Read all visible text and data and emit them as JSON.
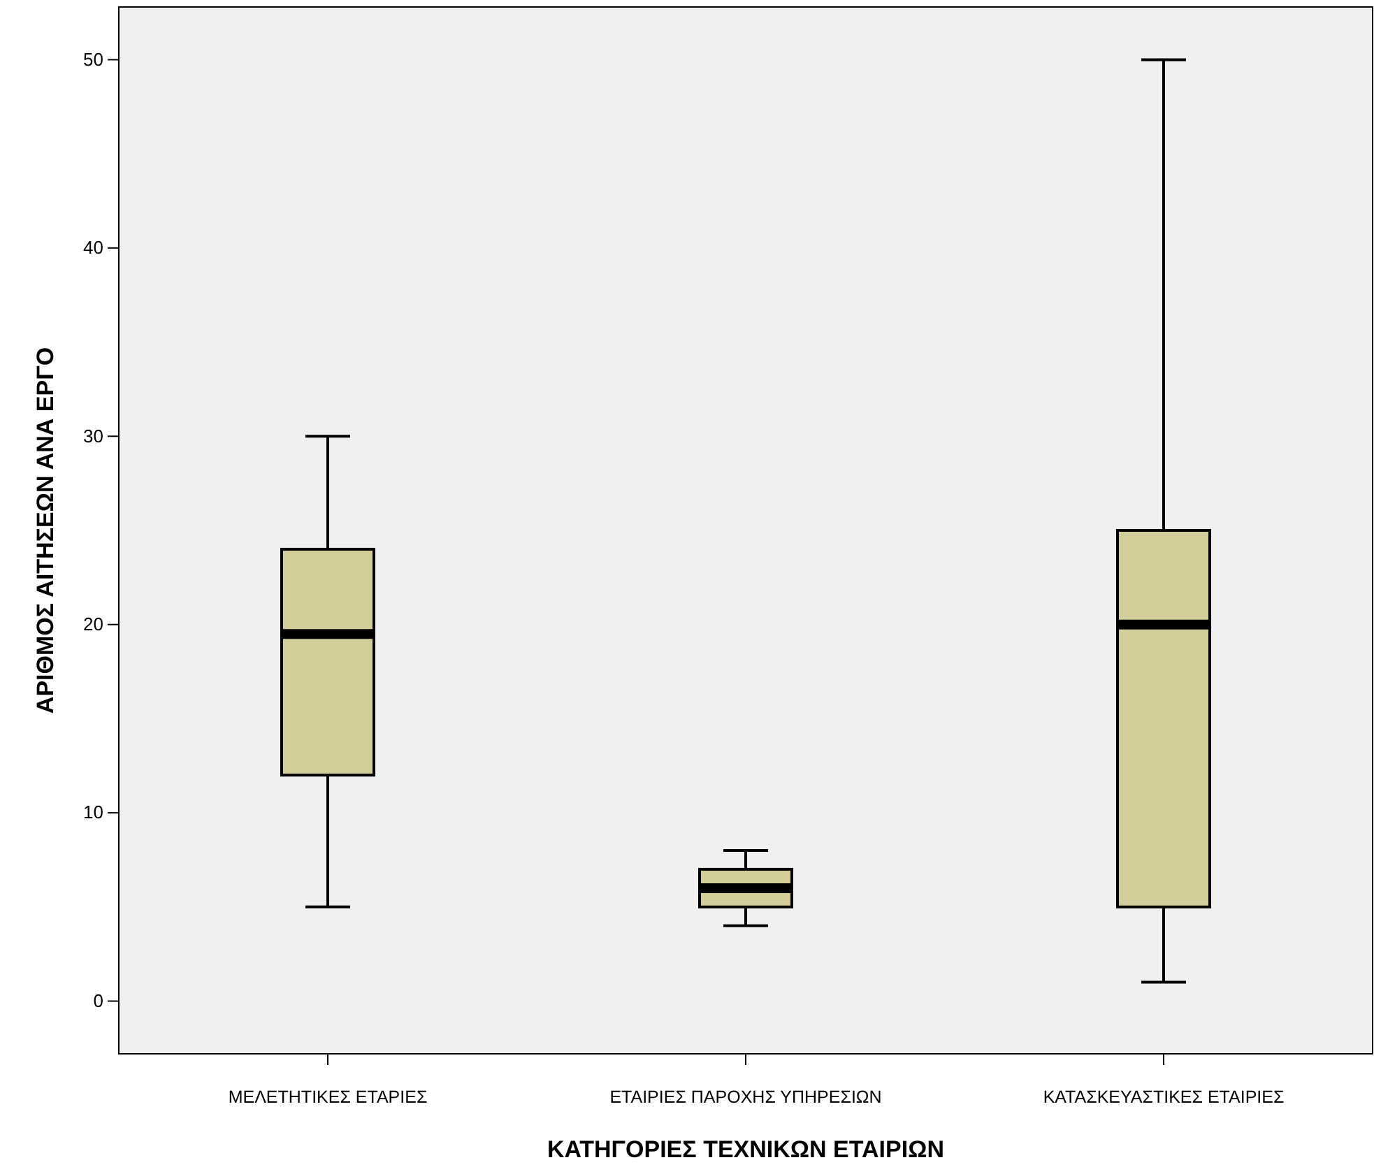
{
  "chart_data": {
    "type": "box",
    "xlabel": "ΚΑΤΗΓΟΡΙΕΣ ΤΕΧΝΙΚΩΝ ΕΤΑΙΡΙΩΝ",
    "ylabel": "ΑΡΙΘΜΟΣ ΑΙΤΗΣΕΩΝ ΑΝΑ ΕΡΓΟ",
    "categories": [
      "ΜΕΛΕΤΗΤΙΚΕΣ ΕΤΑΡΙΕΣ",
      "ΕΤΑΙΡΙΕΣ ΠΑΡΟΧΗΣ ΥΠΗΡΕΣΙΩΝ",
      "ΚΑΤΑΣΚΕΥΑΣΤΙΚΕΣ ΕΤΑΙΡΙΕΣ"
    ],
    "series": [
      {
        "color": "#d3ce99",
        "boxes": [
          {
            "low": 5,
            "q1": 12,
            "median": 19.5,
            "q3": 24,
            "high": 30
          },
          {
            "low": 4,
            "q1": 5,
            "median": 6,
            "q3": 7,
            "high": 8
          },
          {
            "low": 1,
            "q1": 5,
            "median": 20,
            "q3": 25,
            "high": 50
          }
        ]
      }
    ],
    "ylim": [
      -2.8,
      52.8
    ],
    "yticks": [
      0,
      10,
      20,
      30,
      40,
      50
    ]
  }
}
